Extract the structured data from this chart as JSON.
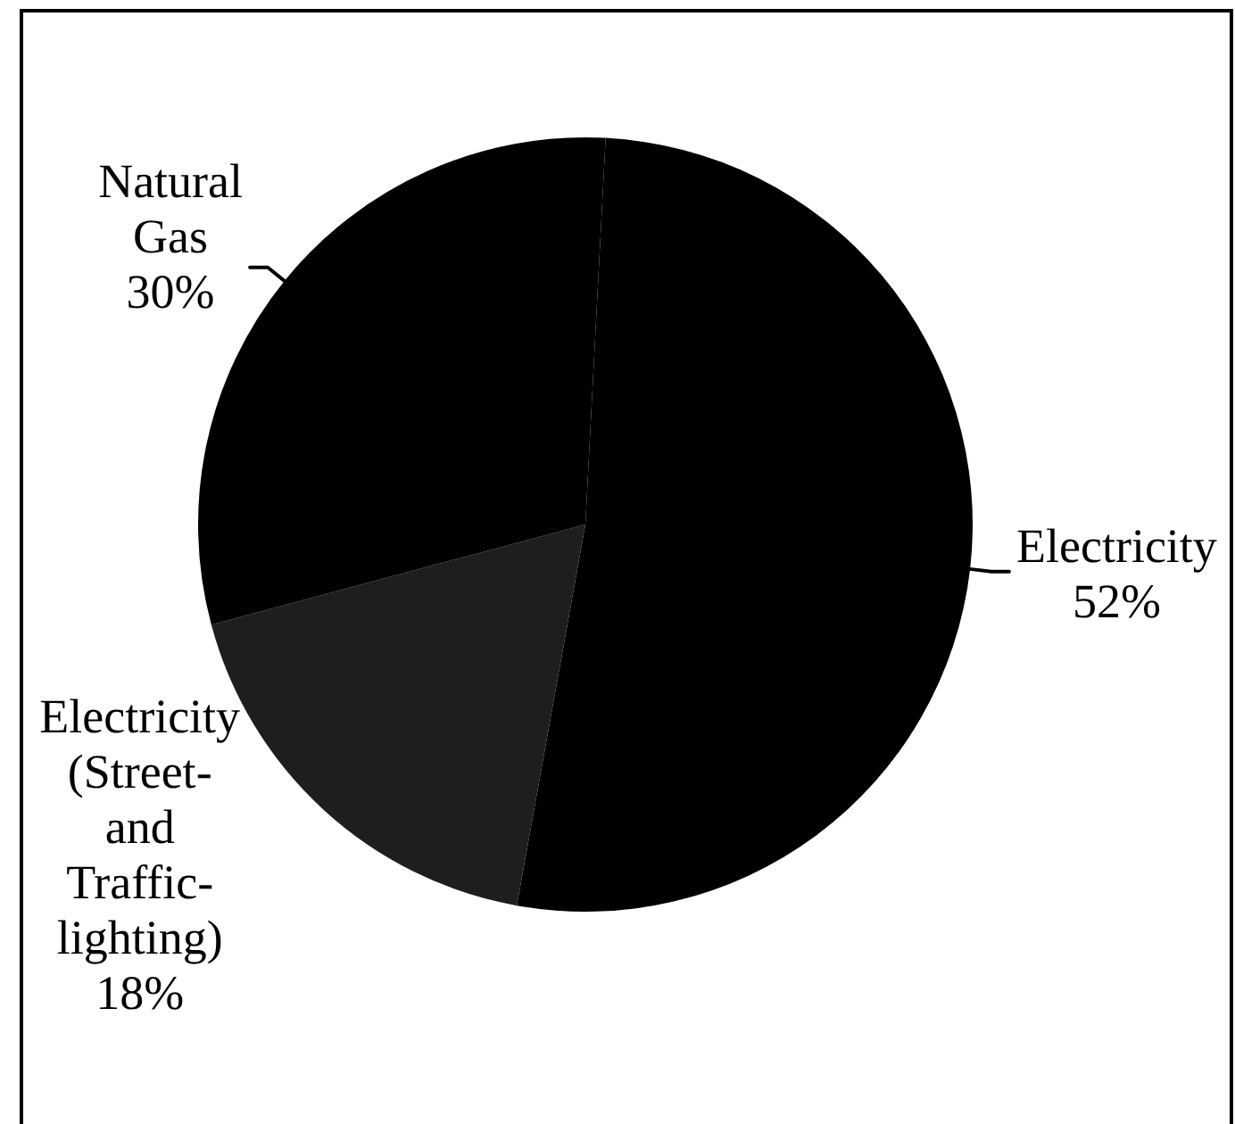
{
  "chart_data": {
    "type": "pie",
    "categories": [
      "Electricity",
      "Electricity (Street- and Traffic-lighting)",
      "Natural Gas"
    ],
    "values": [
      52,
      18,
      30
    ],
    "value_labels": [
      "52%",
      "18%",
      "30%"
    ],
    "colors": [
      "#000000",
      "#1e1e1e",
      "#000000"
    ]
  }
}
